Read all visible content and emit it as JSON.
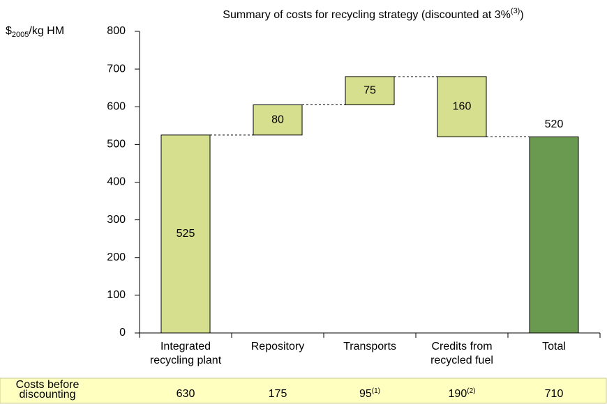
{
  "chart_data": {
    "type": "waterfall",
    "title": [
      "Summary of costs for recycling strategy (discounted at 3%",
      "(3)",
      ")"
    ],
    "ylabel": [
      "$",
      "2005",
      "/kg HM"
    ],
    "categories": [
      [
        "Integrated",
        "recycling plant"
      ],
      [
        "Repository"
      ],
      [
        "Transports"
      ],
      [
        "Credits from",
        "recycled fuel"
      ],
      [
        "Total"
      ]
    ],
    "values": [
      525,
      80,
      75,
      -160,
      520
    ],
    "value_labels": [
      "525",
      "80",
      "75",
      "160",
      "520"
    ],
    "measures": [
      "absolute",
      "relative",
      "relative",
      "relative",
      "total"
    ],
    "colors": [
      "#d5df8e",
      "#d5df8e",
      "#d5df8e",
      "#d5df8e",
      "#6a9a50"
    ],
    "ylim": [
      0,
      800
    ],
    "yticks": [
      0,
      100,
      200,
      300,
      400,
      500,
      600,
      700,
      800
    ],
    "table": {
      "label": [
        "Costs before",
        "discounting"
      ],
      "values": [
        630,
        175,
        95,
        190,
        710
      ],
      "notes": [
        null,
        null,
        "(1)",
        "(2)",
        null
      ]
    }
  }
}
